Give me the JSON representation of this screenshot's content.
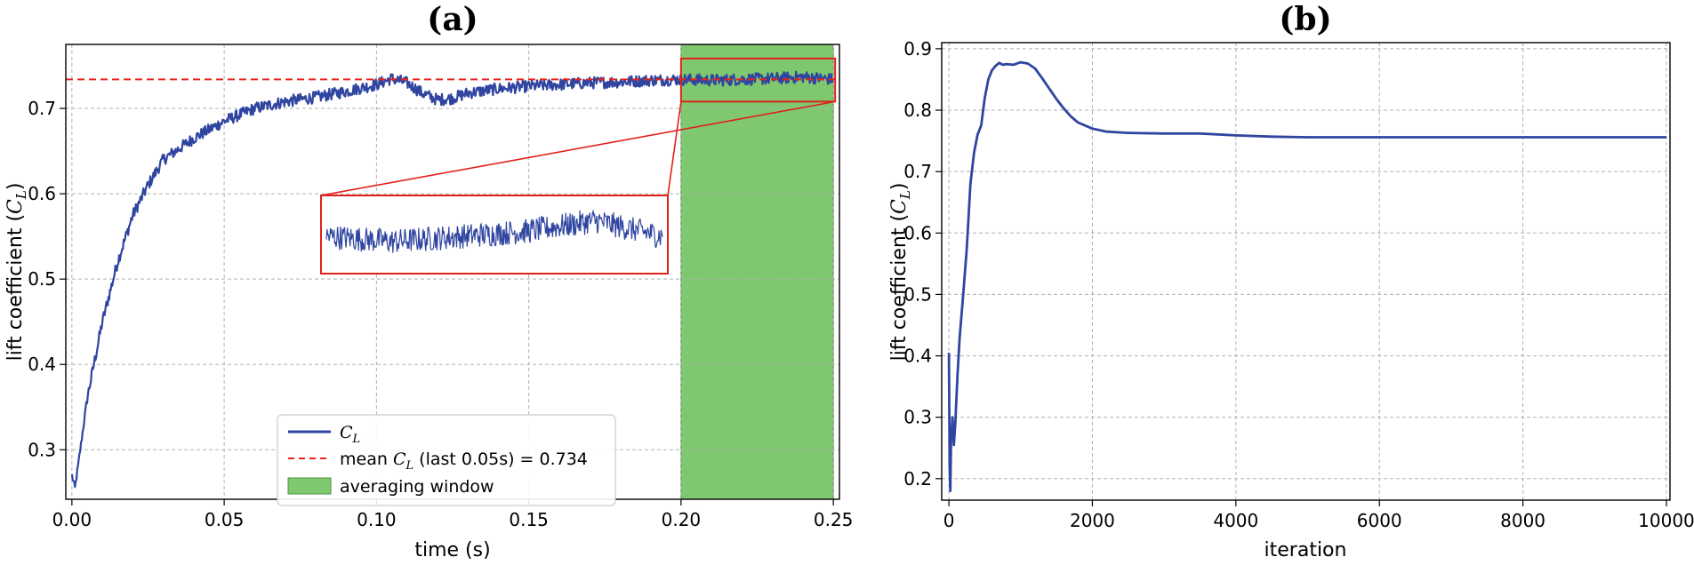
{
  "colors": {
    "series": "#2f45a0",
    "mean": "#e8241c",
    "window_fill": "#7fc86f",
    "window_edge": "#4f8f42",
    "box": "#e0201a",
    "grid": "#b0b0b0"
  },
  "chart_data": [
    {
      "panel": "(a)",
      "type": "line",
      "title": "(a)",
      "xlabel": "time (s)",
      "ylabel_text": "lift coefficient (",
      "ylabel_sym": "C",
      "ylabel_sub": "L",
      "ylabel_close": ")",
      "xlim": [
        -0.002,
        0.252
      ],
      "ylim": [
        0.242,
        0.775
      ],
      "xticks": [
        0.0,
        0.05,
        0.1,
        0.15,
        0.2,
        0.25
      ],
      "xtick_labels": [
        "0.00",
        "0.05",
        "0.10",
        "0.15",
        "0.20",
        "0.25"
      ],
      "yticks": [
        0.3,
        0.4,
        0.5,
        0.6,
        0.7
      ],
      "ytick_labels": [
        "0.3",
        "0.4",
        "0.5",
        "0.6",
        "0.7"
      ],
      "grid": true,
      "series": [
        {
          "name": "C_L",
          "x": [
            0.0,
            0.001,
            0.002,
            0.005,
            0.01,
            0.015,
            0.02,
            0.025,
            0.03,
            0.04,
            0.05,
            0.06,
            0.07,
            0.08,
            0.09,
            0.1,
            0.105,
            0.11,
            0.115,
            0.12,
            0.125,
            0.13,
            0.14,
            0.15,
            0.16,
            0.17,
            0.18,
            0.19,
            0.2,
            0.21,
            0.22,
            0.23,
            0.24,
            0.25
          ],
          "y": [
            0.27,
            0.255,
            0.28,
            0.36,
            0.45,
            0.52,
            0.575,
            0.61,
            0.64,
            0.665,
            0.685,
            0.7,
            0.708,
            0.713,
            0.72,
            0.728,
            0.735,
            0.73,
            0.718,
            0.71,
            0.712,
            0.718,
            0.723,
            0.726,
            0.728,
            0.73,
            0.731,
            0.733,
            0.734,
            0.733,
            0.734,
            0.735,
            0.737,
            0.734
          ]
        }
      ],
      "mean_line": {
        "value": 0.734
      },
      "averaging_window": {
        "x_start": 0.2,
        "x_end": 0.25
      },
      "legend": {
        "position": "lower-center",
        "entries": [
          {
            "type": "line",
            "label": "C_L"
          },
          {
            "type": "dashed",
            "label_prefix": "mean ",
            "label_sym": "C",
            "label_sub": "L",
            "label_suffix": " (last 0.05s) = 0.734"
          },
          {
            "type": "patch",
            "label": "averaging window"
          }
        ]
      }
    },
    {
      "panel": "(b)",
      "type": "line",
      "title": "(b)",
      "xlabel": "iteration",
      "ylabel_text": "lift coefficient (",
      "ylabel_sym": "C",
      "ylabel_sub": "L",
      "ylabel_close": ")",
      "xlim": [
        -100,
        10050
      ],
      "ylim": [
        0.165,
        0.91
      ],
      "xticks": [
        0,
        2000,
        4000,
        6000,
        8000,
        10000
      ],
      "xtick_labels": [
        "0",
        "2000",
        "4000",
        "6000",
        "8000",
        "10000"
      ],
      "yticks": [
        0.2,
        0.3,
        0.4,
        0.5,
        0.6,
        0.7,
        0.8,
        0.9
      ],
      "ytick_labels": [
        "0.2",
        "0.3",
        "0.4",
        "0.5",
        "0.6",
        "0.7",
        "0.8",
        "0.9"
      ],
      "grid": true,
      "series": [
        {
          "name": "C_L",
          "x": [
            0,
            5,
            10,
            20,
            30,
            50,
            70,
            90,
            120,
            150,
            200,
            250,
            300,
            350,
            400,
            450,
            500,
            550,
            600,
            650,
            700,
            750,
            800,
            900,
            1000,
            1100,
            1200,
            1300,
            1400,
            1500,
            1600,
            1700,
            1800,
            2000,
            2200,
            2500,
            3000,
            3500,
            4000,
            4500,
            5000,
            6000,
            7000,
            8000,
            9000,
            10000
          ],
          "y": [
            0.405,
            0.32,
            0.22,
            0.18,
            0.26,
            0.3,
            0.255,
            0.29,
            0.37,
            0.43,
            0.5,
            0.575,
            0.68,
            0.73,
            0.76,
            0.775,
            0.82,
            0.85,
            0.865,
            0.872,
            0.877,
            0.874,
            0.875,
            0.874,
            0.878,
            0.876,
            0.868,
            0.852,
            0.835,
            0.818,
            0.803,
            0.79,
            0.78,
            0.77,
            0.765,
            0.763,
            0.762,
            0.762,
            0.759,
            0.757,
            0.756,
            0.756,
            0.756,
            0.756,
            0.756,
            0.756
          ]
        }
      ]
    }
  ]
}
